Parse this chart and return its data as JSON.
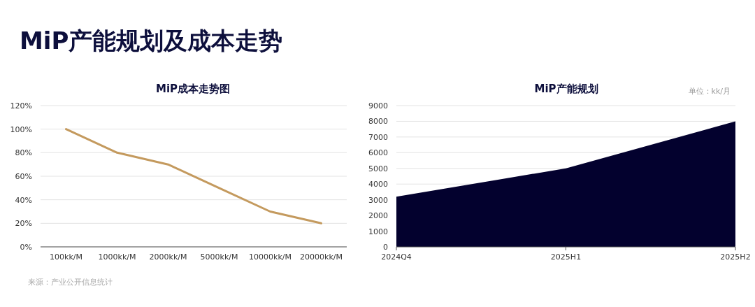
{
  "chart_data": [
    {
      "type": "other",
      "title": "MiP产能规划及成本走势"
    },
    {
      "type": "line",
      "title": "MiP成本走势图",
      "categories": [
        "100kk/M",
        "1000kk/M",
        "2000kk/M",
        "5000kk/M",
        "10000kk/M",
        "20000kk/M"
      ],
      "values": [
        100,
        80,
        70,
        50,
        30,
        20
      ],
      "color": "#c49a5e",
      "ylim": [
        0,
        120
      ],
      "yticks": [
        {
          "value": 0,
          "label": "0%"
        },
        {
          "value": 20,
          "label": "20%"
        },
        {
          "value": 40,
          "label": "40%"
        },
        {
          "value": 60,
          "label": "60%"
        },
        {
          "value": 80,
          "label": "80%"
        },
        {
          "value": 100,
          "label": "100%"
        },
        {
          "value": 120,
          "label": "120%"
        }
      ],
      "grid": "y",
      "annotations": [
        "来源：产业公开信息统计"
      ]
    },
    {
      "type": "area",
      "title": "MiP产能规划",
      "categories": [
        "2024Q4",
        "2025H1",
        "2025H2"
      ],
      "values": [
        3200,
        5000,
        8000
      ],
      "color": "#03012e",
      "ylim": [
        0,
        9000
      ],
      "yticks": [
        0,
        1000,
        2000,
        3000,
        4000,
        5000,
        6000,
        7000,
        8000,
        9000
      ],
      "grid": "y",
      "annotations": [
        "单位：kk/月"
      ]
    }
  ]
}
